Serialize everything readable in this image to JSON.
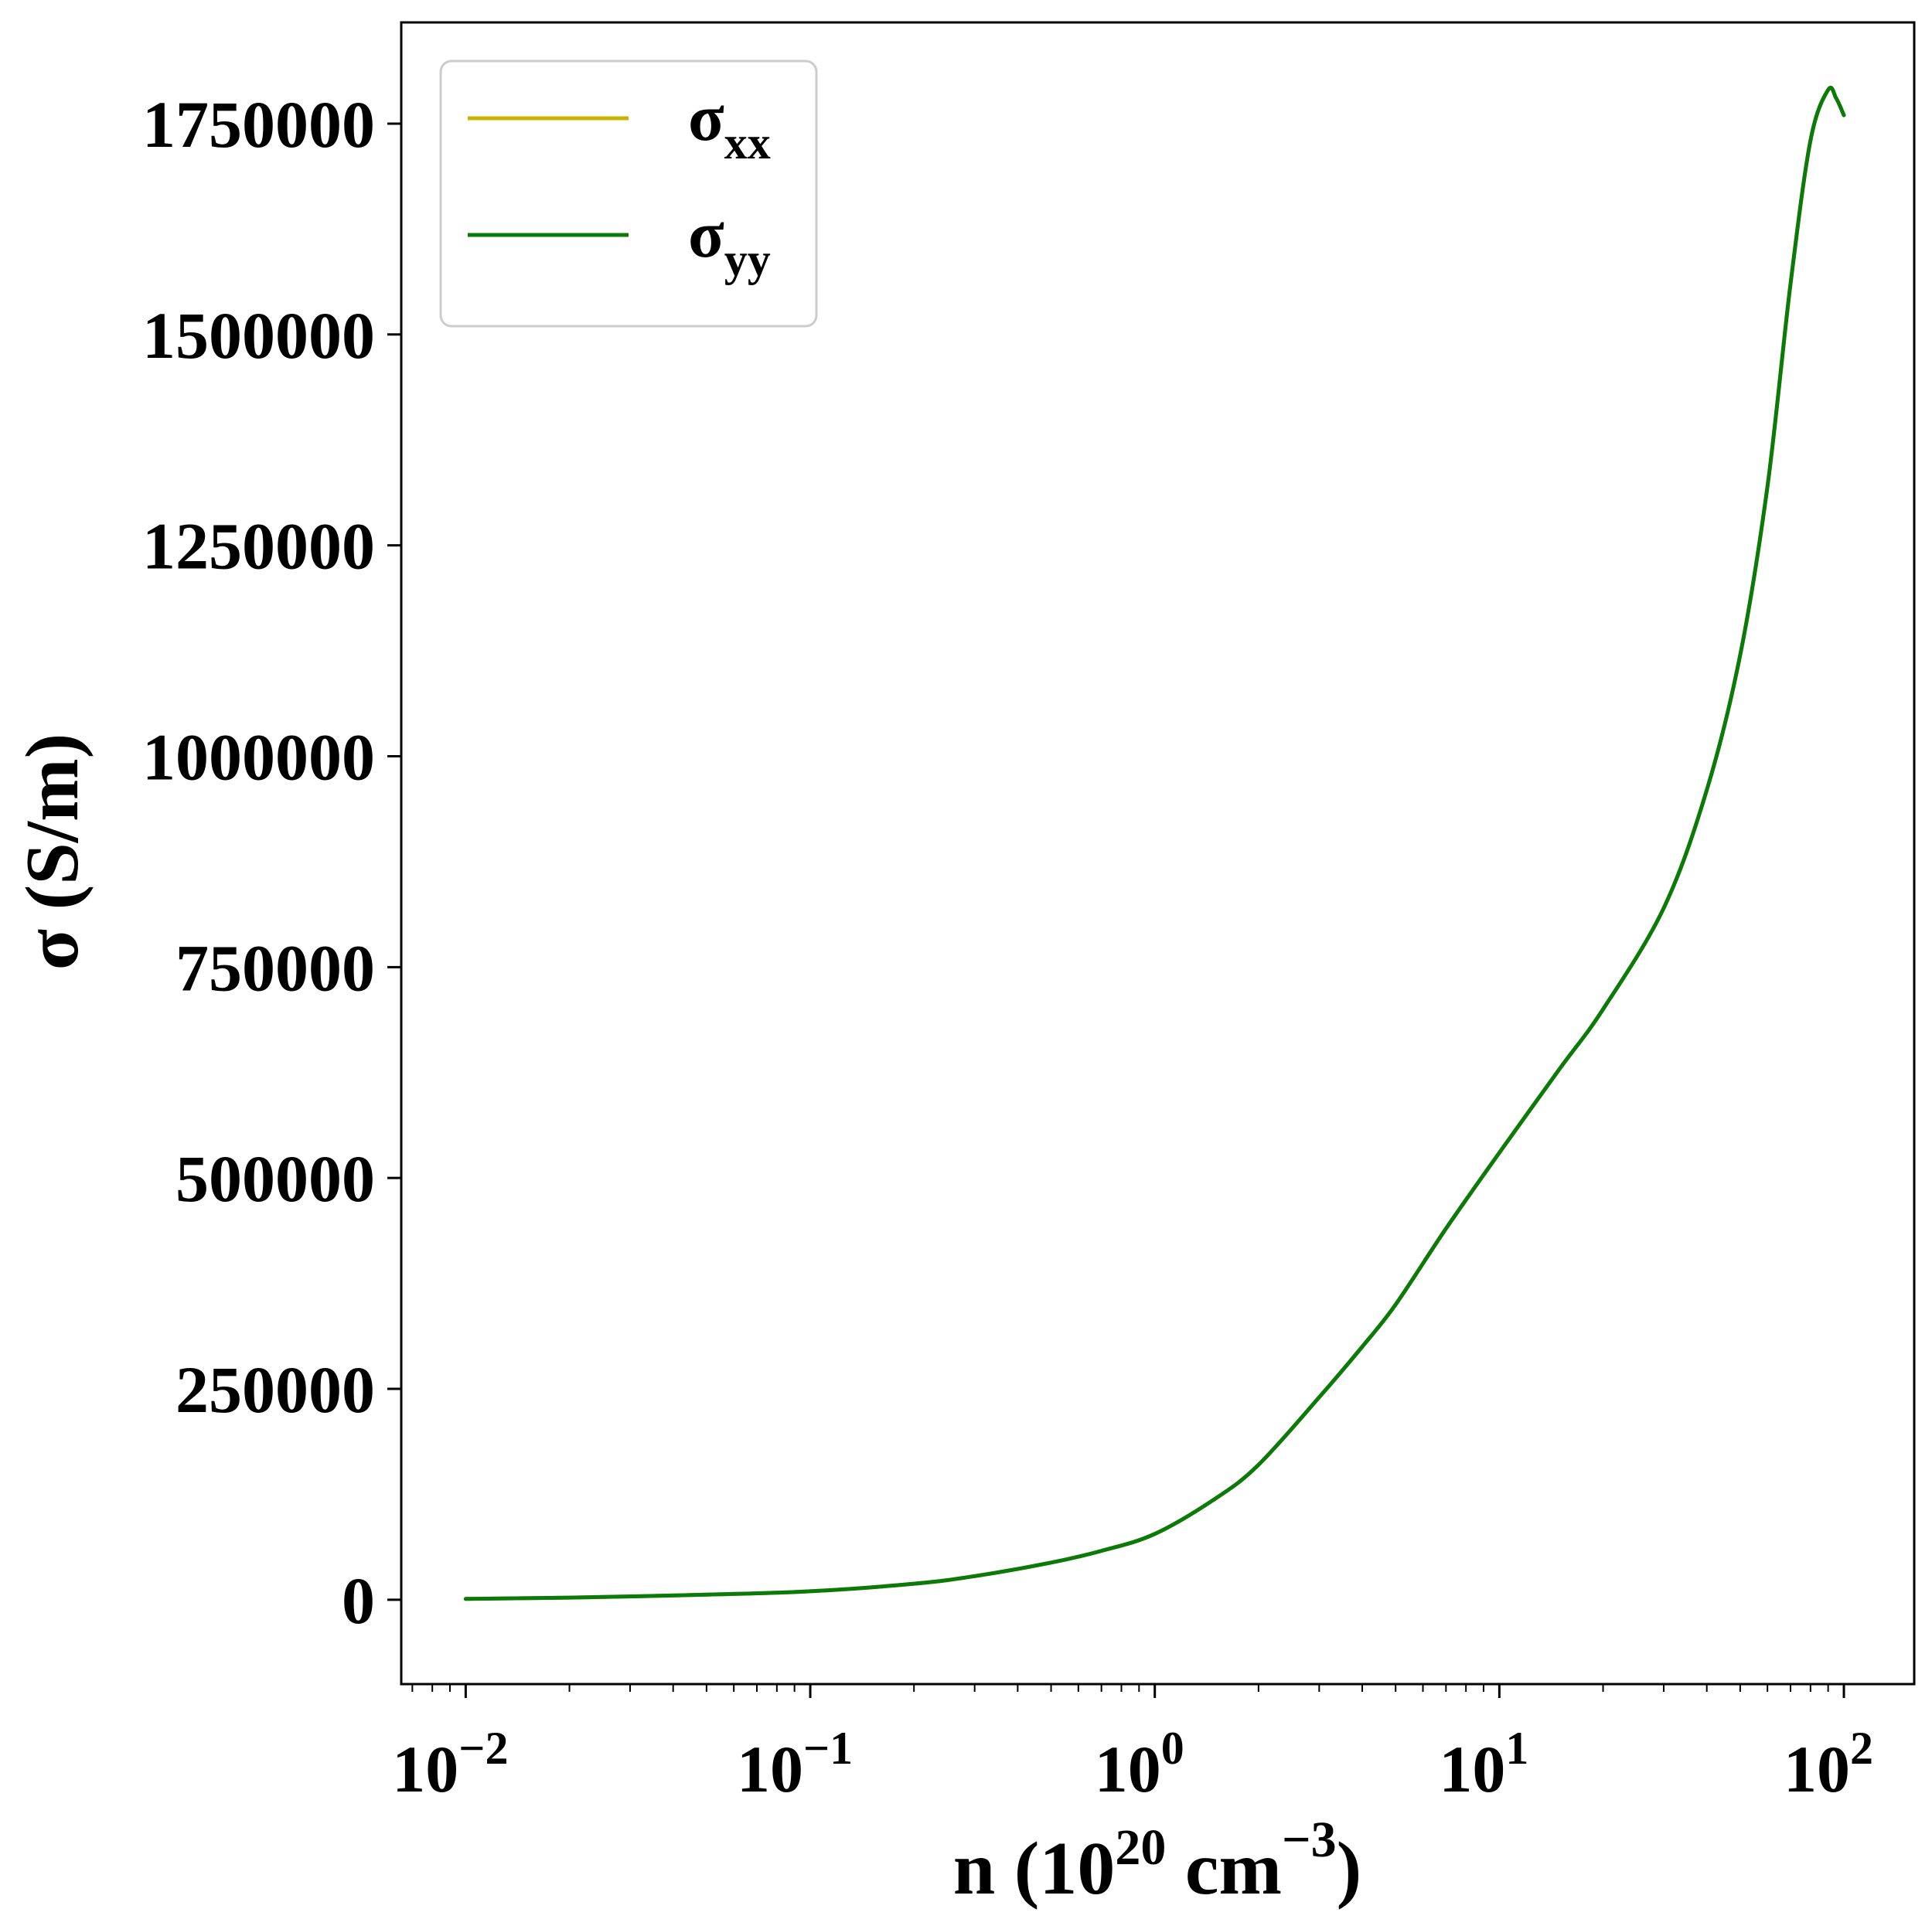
{
  "chart_data": {
    "type": "line",
    "x_scale": "log",
    "xlim": [
      0.0065,
      160
    ],
    "ylim": [
      -100000,
      1870000
    ],
    "x_ticks": [
      {
        "value": 0.01,
        "base": "10",
        "exp": "−2"
      },
      {
        "value": 0.1,
        "base": "10",
        "exp": "−1"
      },
      {
        "value": 1,
        "base": "10",
        "exp": "0"
      },
      {
        "value": 10,
        "base": "10",
        "exp": "1"
      },
      {
        "value": 100,
        "base": "10",
        "exp": "2"
      }
    ],
    "y_ticks": [
      {
        "value": 0,
        "label": "0"
      },
      {
        "value": 250000,
        "label": "250000"
      },
      {
        "value": 500000,
        "label": "500000"
      },
      {
        "value": 750000,
        "label": "750000"
      },
      {
        "value": 1000000,
        "label": "1000000"
      },
      {
        "value": 1250000,
        "label": "1250000"
      },
      {
        "value": 1500000,
        "label": "1500000"
      },
      {
        "value": 1750000,
        "label": "1750000"
      }
    ],
    "xlabel": {
      "pre": "n (10",
      "sup1": "20",
      "mid": " cm",
      "sup2": "−3",
      "post": ")"
    },
    "ylabel": "σ (S/m)",
    "grid": false,
    "legend_position": "upper-left",
    "series": [
      {
        "name_main": "σ",
        "name_sub": "xx",
        "color": "#c8b400",
        "x": [
          0.01,
          0.02,
          0.05,
          0.1,
          0.2,
          0.3,
          0.5,
          0.7,
          1,
          1.5,
          2,
          3,
          4,
          5,
          7,
          10,
          15,
          20,
          30,
          40,
          50,
          60,
          70,
          80,
          90,
          95,
          100
        ],
        "y": [
          1000,
          2500,
          6000,
          10000,
          19000,
          28000,
          44000,
          58000,
          78000,
          120000,
          160000,
          240000,
          300000,
          350000,
          440000,
          530000,
          630000,
          700000,
          820000,
          960000,
          1120000,
          1320000,
          1560000,
          1730000,
          1790000,
          1780000,
          1760000
        ]
      },
      {
        "name_main": "σ",
        "name_sub": "yy",
        "color": "#0a7a0a",
        "x": [
          0.01,
          0.02,
          0.05,
          0.1,
          0.2,
          0.3,
          0.5,
          0.7,
          1,
          1.5,
          2,
          3,
          4,
          5,
          7,
          10,
          15,
          20,
          30,
          40,
          50,
          60,
          70,
          80,
          90,
          95,
          100
        ],
        "y": [
          1000,
          2500,
          6000,
          10000,
          19000,
          28000,
          44000,
          58000,
          78000,
          120000,
          160000,
          240000,
          300000,
          350000,
          440000,
          530000,
          630000,
          700000,
          820000,
          960000,
          1120000,
          1320000,
          1560000,
          1730000,
          1790000,
          1780000,
          1760000
        ]
      }
    ]
  }
}
